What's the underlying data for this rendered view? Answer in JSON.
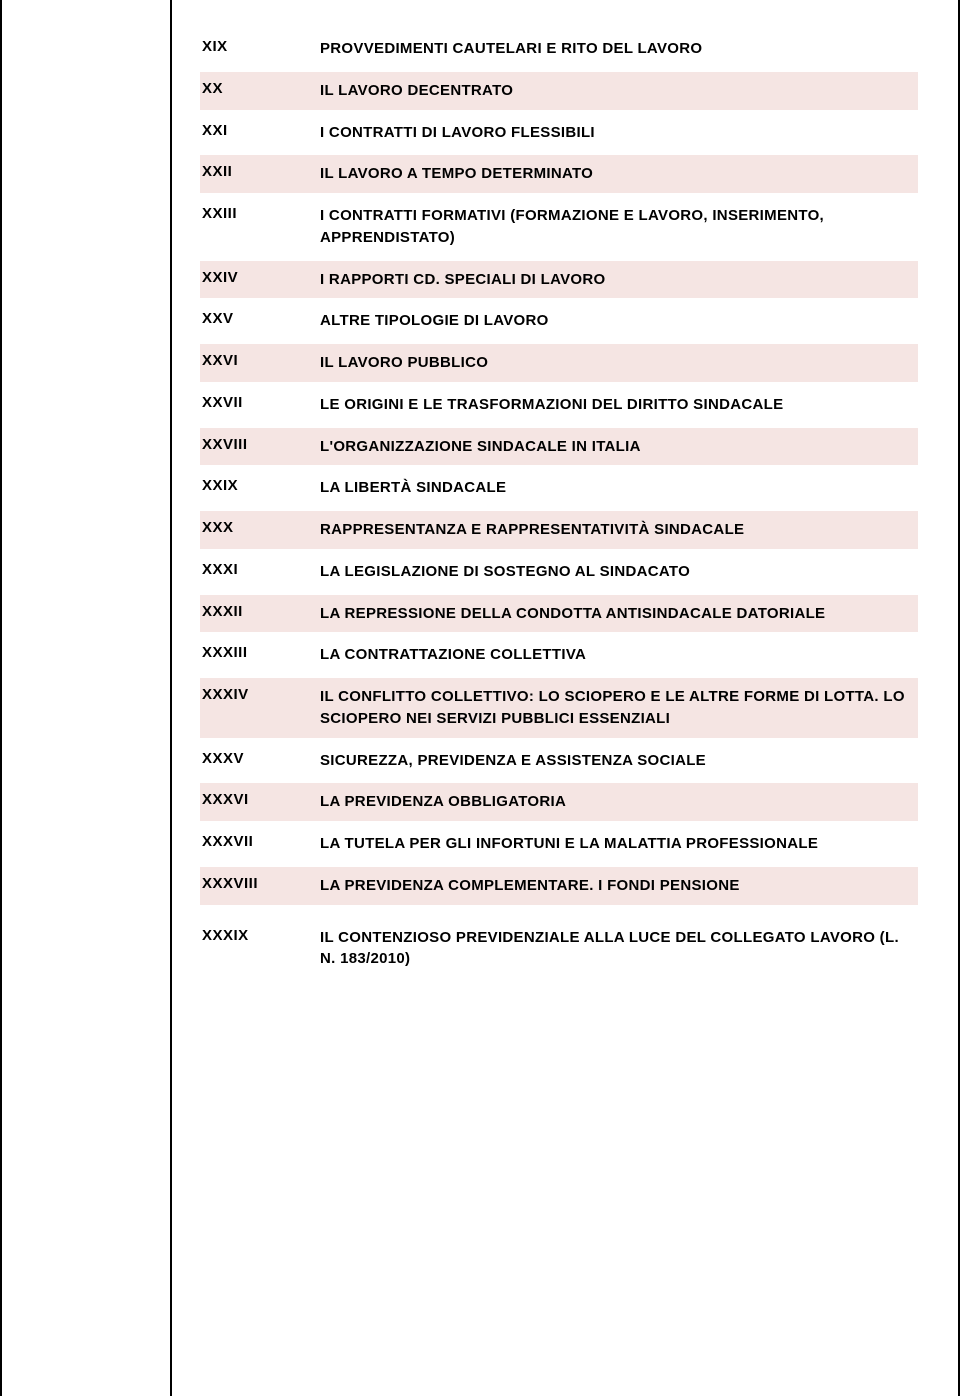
{
  "rows": [
    {
      "num": "XIX",
      "desc": "PROVVEDIMENTI CAUTELARI E RITO DEL LAVORO",
      "shade": false
    },
    {
      "num": "XX",
      "desc": "IL LAVORO DECENTRATO",
      "shade": true
    },
    {
      "num": "XXI",
      "desc": "I CONTRATTI DI LAVORO FLESSIBILI",
      "shade": false
    },
    {
      "num": "XXII",
      "desc": "IL LAVORO A TEMPO DETERMINATO",
      "shade": true
    },
    {
      "num": "XXIII",
      "desc": "I CONTRATTI FORMATIVI (FORMAZIONE E LAVORO, INSERIMENTO, APPRENDISTATO)",
      "shade": false,
      "numTop": true
    },
    {
      "num": "XXIV",
      "desc": "I RAPPORTI CD. SPECIALI DI LAVORO",
      "shade": true
    },
    {
      "num": "XXV",
      "desc": "ALTRE TIPOLOGIE DI LAVORO",
      "shade": false
    },
    {
      "num": "XXVI",
      "desc": "IL LAVORO PUBBLICO",
      "shade": true
    },
    {
      "num": "XXVII",
      "desc": "LE ORIGINI E LE TRASFORMAZIONI DEL DIRITTO SINDACALE",
      "shade": false
    },
    {
      "num": "XXVIII",
      "desc": "L'ORGANIZZAZIONE SINDACALE IN ITALIA",
      "shade": true
    },
    {
      "num": "XXIX",
      "desc": "LA LIBERTÀ SINDACALE",
      "shade": false
    },
    {
      "num": "XXX",
      "desc": "RAPPRESENTANZA E RAPPRESENTATIVITÀ SINDACALE",
      "shade": true
    },
    {
      "num": "XXXI",
      "desc": "LA LEGISLAZIONE DI SOSTEGNO AL SINDACATO",
      "shade": false
    },
    {
      "num": "XXXII",
      "desc": "LA REPRESSIONE DELLA CONDOTTA ANTISINDACALE DATORIALE",
      "shade": true
    },
    {
      "num": "XXXIII",
      "desc": "LA CONTRATTAZIONE COLLETTIVA",
      "shade": false
    },
    {
      "num": "XXXIV",
      "desc": "IL CONFLITTO COLLETTIVO: LO SCIOPERO E LE ALTRE FORME DI LOTTA. LO SCIOPERO NEI SERVIZI PUBBLICI ESSENZIALI",
      "shade": true
    },
    {
      "num": "XXXV",
      "desc": "SICUREZZA, PREVIDENZA E ASSISTENZA SOCIALE",
      "shade": false
    },
    {
      "num": "XXXVI",
      "desc": "LA PREVIDENZA OBBLIGATORIA",
      "shade": true
    },
    {
      "num": "XXXVII",
      "desc": "LA TUTELA PER GLI INFORTUNI E LA MALATTIA PROFESSIONALE",
      "shade": false
    },
    {
      "num": "XXXVIII",
      "desc": "LA PREVIDENZA COMPLEMENTARE. I FONDI PENSIONE",
      "shade": true
    },
    {
      "num": "XXXIX",
      "desc": "IL CONTENZIOSO PREVIDENZIALE ALLA LUCE DEL COLLEGATO LAVORO (L. N. 183/2010)",
      "shade": false
    }
  ]
}
